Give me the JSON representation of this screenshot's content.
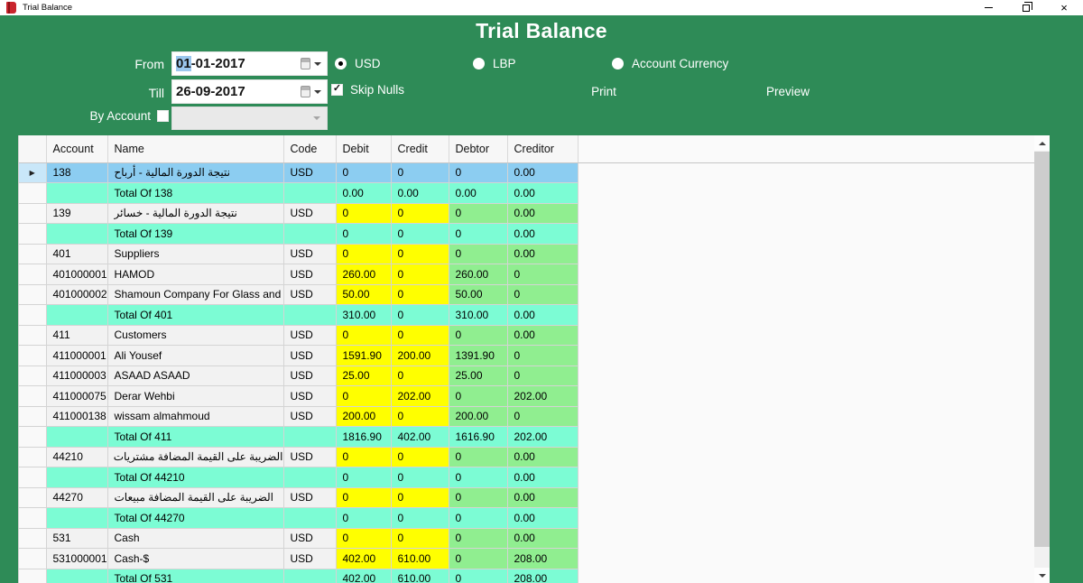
{
  "window": {
    "title": "Trial Balance"
  },
  "icons": {
    "row_arrow": "▶",
    "check": "✓",
    "close": "×"
  },
  "colors": {
    "header-green": "#2e8b57",
    "selected-row": "#8ccdf1",
    "selected-row-header": "#c9e7f9",
    "total-row": "#7cfcd4",
    "data-cell": "#f2f2f2",
    "amount-yellow": "#ffff00",
    "amount-green": "#90ee90"
  },
  "header": {
    "title": "Trial Balance",
    "from": {
      "label": "From",
      "day_segment": "01",
      "rest_segment": "-01-2017"
    },
    "till": {
      "label": "Till",
      "value": "26-09-2017"
    },
    "by_account": {
      "label": "By Account",
      "checked": false,
      "combo_value": ""
    },
    "currency_options": [
      {
        "label": "USD",
        "selected": true
      },
      {
        "label": "LBP",
        "selected": false
      },
      {
        "label": "Account Currency",
        "selected": false
      }
    ],
    "skip_nulls": {
      "label": "Skip Nulls",
      "checked": true
    },
    "print_label": "Print",
    "preview_label": "Preview"
  },
  "grid": {
    "columns": [
      "Account",
      "Name",
      "Code",
      "Debit",
      "Credit",
      "Debtor",
      "Creditor"
    ],
    "rows": [
      {
        "type": "selected",
        "account": "138",
        "name": "نتيجة الدورة المالية - أرباح",
        "rtl": true,
        "code": "USD",
        "debit": "0",
        "credit": "0",
        "debtor": "0",
        "creditor": "0.00"
      },
      {
        "type": "total",
        "account": "",
        "name": "Total Of 138",
        "code": "",
        "debit": "0.00",
        "credit": "0.00",
        "debtor": "0.00",
        "creditor": "0.00"
      },
      {
        "type": "data",
        "account": "139",
        "name": "نتيجة الدورة المالية - خسائر",
        "rtl": true,
        "code": "USD",
        "debit": "0",
        "credit": "0",
        "debtor": "0",
        "creditor": "0.00"
      },
      {
        "type": "total",
        "account": "",
        "name": "Total Of 139",
        "code": "",
        "debit": "0",
        "credit": "0",
        "debtor": "0",
        "creditor": "0.00"
      },
      {
        "type": "data",
        "account": "401",
        "name": "Suppliers",
        "code": "USD",
        "debit": "0",
        "credit": "0",
        "debtor": "0",
        "creditor": "0.00"
      },
      {
        "type": "data",
        "account": "401000001",
        "name": "HAMOD",
        "code": "USD",
        "debit": "260.00",
        "credit": "0",
        "debtor": "260.00",
        "creditor": "0"
      },
      {
        "type": "data",
        "account": "401000002",
        "name": "Shamoun Company For Glass and Mirrors",
        "code": "USD",
        "debit": "50.00",
        "credit": "0",
        "debtor": "50.00",
        "creditor": "0"
      },
      {
        "type": "total",
        "account": "",
        "name": "Total Of 401",
        "code": "",
        "debit": "310.00",
        "credit": "0",
        "debtor": "310.00",
        "creditor": "0.00"
      },
      {
        "type": "data",
        "account": "411",
        "name": "Customers",
        "code": "USD",
        "debit": "0",
        "credit": "0",
        "debtor": "0",
        "creditor": "0.00"
      },
      {
        "type": "data",
        "account": "411000001",
        "name": "Ali Yousef",
        "code": "USD",
        "debit": "1591.90",
        "credit": "200.00",
        "debtor": "1391.90",
        "creditor": "0"
      },
      {
        "type": "data",
        "account": "411000003",
        "name": "ASAAD ASAAD",
        "code": "USD",
        "debit": "25.00",
        "credit": "0",
        "debtor": "25.00",
        "creditor": "0"
      },
      {
        "type": "data",
        "account": "411000075",
        "name": "Derar Wehbi",
        "code": "USD",
        "debit": "0",
        "credit": "202.00",
        "debtor": "0",
        "creditor": "202.00"
      },
      {
        "type": "data",
        "account": "411000138",
        "name": "wissam almahmoud",
        "code": "USD",
        "debit": "200.00",
        "credit": "0",
        "debtor": "200.00",
        "creditor": "0"
      },
      {
        "type": "total",
        "account": "",
        "name": "Total Of 411",
        "code": "",
        "debit": "1816.90",
        "credit": "402.00",
        "debtor": "1616.90",
        "creditor": "202.00"
      },
      {
        "type": "data",
        "account": "44210",
        "name": "الضريبة على القيمة المضافة مشتريات",
        "rtl": true,
        "code": "USD",
        "debit": "0",
        "credit": "0",
        "debtor": "0",
        "creditor": "0.00"
      },
      {
        "type": "total",
        "account": "",
        "name": "Total Of 44210",
        "code": "",
        "debit": "0",
        "credit": "0",
        "debtor": "0",
        "creditor": "0.00"
      },
      {
        "type": "data",
        "account": "44270",
        "name": "الضريبة على القيمة المضافة مبيعات",
        "rtl": true,
        "code": "USD",
        "debit": "0",
        "credit": "0",
        "debtor": "0",
        "creditor": "0.00"
      },
      {
        "type": "total",
        "account": "",
        "name": "Total Of 44270",
        "code": "",
        "debit": "0",
        "credit": "0",
        "debtor": "0",
        "creditor": "0.00"
      },
      {
        "type": "data",
        "account": "531",
        "name": "Cash",
        "code": "USD",
        "debit": "0",
        "credit": "0",
        "debtor": "0",
        "creditor": "0.00"
      },
      {
        "type": "data",
        "account": "531000001",
        "name": "Cash-$",
        "code": "USD",
        "debit": "402.00",
        "credit": "610.00",
        "debtor": "0",
        "creditor": "208.00"
      },
      {
        "type": "total",
        "account": "",
        "name": "Total Of 531",
        "code": "",
        "debit": "402.00",
        "credit": "610.00",
        "debtor": "0",
        "creditor": "208.00"
      }
    ]
  }
}
